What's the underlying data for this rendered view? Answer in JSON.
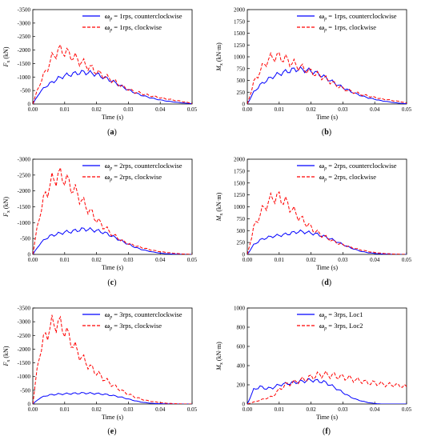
{
  "chart_data": [
    {
      "type": "line",
      "panel": "a",
      "xlabel": "Time (s)",
      "ylabel_main": "F",
      "ylabel_sub": "x",
      "ylabel_unit": "(kN)",
      "xlim": [
        0,
        0.05
      ],
      "ylim": [
        0,
        -3500
      ],
      "xticks": [
        "0.00",
        "0.01",
        "0.02",
        "0.03",
        "0.04",
        "0.05"
      ],
      "yticks": [
        "0",
        "-500",
        "-1000",
        "-1500",
        "-2000",
        "-2500",
        "-3000",
        "-3500"
      ],
      "series": [
        {
          "name_main": "ω",
          "name_sub": "p",
          "name_rest": " = 1rps, counterclockwise",
          "color": "#0000ff",
          "dash": "solid",
          "x": [
            0,
            0.002,
            0.004,
            0.006,
            0.008,
            0.01,
            0.012,
            0.014,
            0.016,
            0.018,
            0.02,
            0.022,
            0.024,
            0.026,
            0.028,
            0.03,
            0.032,
            0.034,
            0.036,
            0.038,
            0.04,
            0.042,
            0.044,
            0.046,
            0.048,
            0.05
          ],
          "y": [
            0,
            -400,
            -650,
            -800,
            -950,
            -1050,
            -1100,
            -1150,
            -1180,
            -1150,
            -1100,
            -1000,
            -900,
            -780,
            -650,
            -520,
            -420,
            -330,
            -260,
            -200,
            -150,
            -110,
            -80,
            -50,
            -30,
            -10
          ]
        },
        {
          "name_main": "ω",
          "name_sub": "p",
          "name_rest": " = 1rps, clockwise",
          "color": "#ff0000",
          "dash": "dashed",
          "x": [
            0,
            0.002,
            0.004,
            0.006,
            0.008,
            0.01,
            0.012,
            0.014,
            0.016,
            0.018,
            0.02,
            0.022,
            0.024,
            0.026,
            0.028,
            0.03,
            0.032,
            0.034,
            0.036,
            0.038,
            0.04,
            0.042,
            0.044,
            0.046,
            0.048,
            0.05
          ],
          "y": [
            0,
            -700,
            -1200,
            -1700,
            -2000,
            -1950,
            -1800,
            -1650,
            -1500,
            -1350,
            -1200,
            -1050,
            -950,
            -800,
            -650,
            -550,
            -450,
            -400,
            -330,
            -280,
            -230,
            -190,
            -150,
            -110,
            -70,
            -20
          ]
        }
      ]
    },
    {
      "type": "line",
      "panel": "b",
      "xlabel": "Time (s)",
      "ylabel_main": "M",
      "ylabel_sub": "x",
      "ylabel_unit": "(kN·m)",
      "xlim": [
        0,
        0.05
      ],
      "ylim": [
        0,
        2000
      ],
      "xticks": [
        "0.00",
        "0.01",
        "0.02",
        "0.03",
        "0.04",
        "0.05"
      ],
      "yticks": [
        "0",
        "250",
        "500",
        "750",
        "1000",
        "1250",
        "1500",
        "1750",
        "2000"
      ],
      "series": [
        {
          "name_main": "ω",
          "name_sub": "p",
          "name_rest": " = 1rps, counterclockwise",
          "color": "#0000ff",
          "dash": "solid",
          "x": [
            0,
            0.002,
            0.004,
            0.006,
            0.008,
            0.01,
            0.012,
            0.014,
            0.016,
            0.018,
            0.02,
            0.022,
            0.024,
            0.026,
            0.028,
            0.03,
            0.032,
            0.034,
            0.036,
            0.038,
            0.04,
            0.042,
            0.044,
            0.046,
            0.048,
            0.05
          ],
          "y": [
            0,
            250,
            400,
            500,
            580,
            640,
            680,
            720,
            740,
            720,
            700,
            650,
            580,
            500,
            420,
            350,
            280,
            220,
            170,
            130,
            100,
            70,
            50,
            30,
            15,
            5
          ]
        },
        {
          "name_main": "ω",
          "name_sub": "p",
          "name_rest": " = 1rps, clockwise",
          "color": "#ff0000",
          "dash": "dashed",
          "x": [
            0,
            0.002,
            0.004,
            0.006,
            0.008,
            0.01,
            0.012,
            0.014,
            0.016,
            0.018,
            0.02,
            0.022,
            0.024,
            0.026,
            0.028,
            0.03,
            0.032,
            0.034,
            0.036,
            0.038,
            0.04,
            0.042,
            0.044,
            0.046,
            0.048,
            0.05
          ],
          "y": [
            0,
            450,
            700,
            900,
            1000,
            1000,
            950,
            870,
            800,
            740,
            680,
            620,
            560,
            480,
            400,
            330,
            280,
            240,
            200,
            170,
            140,
            110,
            90,
            70,
            50,
            20
          ]
        }
      ]
    },
    {
      "type": "line",
      "panel": "c",
      "xlabel": "Time (s)",
      "ylabel_main": "F",
      "ylabel_sub": "x",
      "ylabel_unit": "(kN)",
      "xlim": [
        0,
        0.05
      ],
      "ylim": [
        0,
        -3000
      ],
      "xticks": [
        "0.00",
        "0.01",
        "0.02",
        "0.03",
        "0.04",
        "0.05"
      ],
      "yticks": [
        "0",
        "-500",
        "-1000",
        "-1500",
        "-2000",
        "-2500",
        "-3000"
      ],
      "series": [
        {
          "name_main": "ω",
          "name_sub": "p",
          "name_rest": " = 2rps, counterclockwise",
          "color": "#0000ff",
          "dash": "solid",
          "x": [
            0,
            0.002,
            0.004,
            0.006,
            0.008,
            0.01,
            0.012,
            0.014,
            0.016,
            0.018,
            0.02,
            0.022,
            0.024,
            0.026,
            0.028,
            0.03,
            0.032,
            0.034,
            0.036,
            0.038,
            0.04,
            0.042,
            0.044,
            0.046,
            0.048,
            0.05
          ],
          "y": [
            0,
            -300,
            -500,
            -600,
            -650,
            -700,
            -720,
            -760,
            -800,
            -780,
            -750,
            -700,
            -620,
            -520,
            -420,
            -320,
            -230,
            -160,
            -110,
            -70,
            -40,
            -20,
            -10,
            -5,
            0,
            0
          ]
        },
        {
          "name_main": "ω",
          "name_sub": "p",
          "name_rest": " = 2rps, clockwise",
          "color": "#ff0000",
          "dash": "dashed",
          "x": [
            0,
            0.002,
            0.004,
            0.006,
            0.008,
            0.01,
            0.012,
            0.014,
            0.016,
            0.018,
            0.02,
            0.022,
            0.024,
            0.026,
            0.028,
            0.03,
            0.032,
            0.034,
            0.036,
            0.038,
            0.04,
            0.042,
            0.044,
            0.046,
            0.048,
            0.05
          ],
          "y": [
            0,
            -1200,
            -1900,
            -2300,
            -2500,
            -2400,
            -2150,
            -1900,
            -1600,
            -1350,
            -1100,
            -900,
            -720,
            -560,
            -430,
            -340,
            -280,
            -220,
            -170,
            -120,
            -90,
            -60,
            -40,
            -20,
            -10,
            0
          ]
        }
      ]
    },
    {
      "type": "line",
      "panel": "d",
      "xlabel": "Time (s)",
      "ylabel_main": "M",
      "ylabel_sub": "x",
      "ylabel_unit": "(kN·m)",
      "xlim": [
        0,
        0.05
      ],
      "ylim": [
        0,
        2000
      ],
      "xticks": [
        "0.00",
        "0.01",
        "0.02",
        "0.03",
        "0.04",
        "0.05"
      ],
      "yticks": [
        "0",
        "250",
        "500",
        "750",
        "1000",
        "1250",
        "1500",
        "1750",
        "2000"
      ],
      "series": [
        {
          "name_main": "ω",
          "name_sub": "p",
          "name_rest": " = 2rps, counterclockwise",
          "color": "#0000ff",
          "dash": "solid",
          "x": [
            0,
            0.002,
            0.004,
            0.006,
            0.008,
            0.01,
            0.012,
            0.014,
            0.016,
            0.018,
            0.02,
            0.022,
            0.024,
            0.026,
            0.028,
            0.03,
            0.032,
            0.034,
            0.036,
            0.038,
            0.04,
            0.042,
            0.044,
            0.046,
            0.048,
            0.05
          ],
          "y": [
            0,
            200,
            300,
            350,
            380,
            400,
            420,
            450,
            480,
            470,
            450,
            420,
            380,
            330,
            270,
            210,
            150,
            100,
            60,
            35,
            20,
            10,
            5,
            0,
            0,
            0
          ]
        },
        {
          "name_main": "ω",
          "name_sub": "p",
          "name_rest": " = 2rps, clockwise",
          "color": "#ff0000",
          "dash": "dashed",
          "x": [
            0,
            0.002,
            0.004,
            0.006,
            0.008,
            0.01,
            0.012,
            0.014,
            0.016,
            0.018,
            0.02,
            0.022,
            0.024,
            0.026,
            0.028,
            0.03,
            0.032,
            0.034,
            0.036,
            0.038,
            0.04,
            0.042,
            0.044,
            0.046,
            0.048,
            0.05
          ],
          "y": [
            0,
            550,
            850,
            1050,
            1200,
            1200,
            1100,
            950,
            800,
            680,
            560,
            460,
            380,
            310,
            250,
            200,
            160,
            120,
            90,
            60,
            40,
            25,
            15,
            8,
            4,
            0
          ]
        }
      ]
    },
    {
      "type": "line",
      "panel": "e",
      "xlabel": "Time (s)",
      "ylabel_main": "F",
      "ylabel_sub": "x",
      "ylabel_unit": "(kN)",
      "xlim": [
        0,
        0.05
      ],
      "ylim": [
        0,
        -3500
      ],
      "xticks": [
        "0.00",
        "0.01",
        "0.02",
        "0.03",
        "0.04",
        "0.05"
      ],
      "yticks": [
        "0",
        "-500",
        "-1000",
        "-1500",
        "-2000",
        "-2500",
        "-3000",
        "-3500"
      ],
      "series": [
        {
          "name_main": "ω",
          "name_sub": "p",
          "name_rest": " = 3rps, counterclockwise",
          "color": "#0000ff",
          "dash": "solid",
          "x": [
            0,
            0.002,
            0.004,
            0.006,
            0.008,
            0.01,
            0.012,
            0.014,
            0.016,
            0.018,
            0.02,
            0.022,
            0.024,
            0.026,
            0.028,
            0.03,
            0.032,
            0.034,
            0.036,
            0.038,
            0.04,
            0.042,
            0.044,
            0.046,
            0.048,
            0.05
          ],
          "y": [
            0,
            -200,
            -300,
            -340,
            -360,
            -370,
            -380,
            -390,
            -400,
            -390,
            -380,
            -360,
            -330,
            -290,
            -240,
            -180,
            -120,
            -70,
            -40,
            -20,
            -10,
            -5,
            0,
            0,
            0,
            0
          ]
        },
        {
          "name_main": "ω",
          "name_sub": "p",
          "name_rest": " = 3rps, clockwise",
          "color": "#ff0000",
          "dash": "dashed",
          "x": [
            0,
            0.002,
            0.004,
            0.006,
            0.008,
            0.01,
            0.012,
            0.014,
            0.016,
            0.018,
            0.02,
            0.022,
            0.024,
            0.026,
            0.028,
            0.03,
            0.032,
            0.034,
            0.036,
            0.038,
            0.04,
            0.042,
            0.044,
            0.046,
            0.048,
            0.05
          ],
          "y": [
            0,
            -1800,
            -2500,
            -2900,
            -2950,
            -2700,
            -2300,
            -1900,
            -1600,
            -1350,
            -1150,
            -950,
            -780,
            -620,
            -480,
            -360,
            -260,
            -180,
            -120,
            -80,
            -50,
            -30,
            -15,
            -5,
            0,
            0
          ]
        }
      ]
    },
    {
      "type": "line",
      "panel": "f",
      "xlabel": "Time (s)",
      "ylabel_main": "M",
      "ylabel_sub": "x",
      "ylabel_unit": "(kN·m)",
      "xlim": [
        0,
        0.05
      ],
      "ylim": [
        0,
        1000
      ],
      "xticks": [
        "0.00",
        "0.01",
        "0.02",
        "0.03",
        "0.04",
        "0.05"
      ],
      "yticks": [
        "0",
        "200",
        "400",
        "600",
        "800",
        "1000"
      ],
      "series": [
        {
          "name_main": "ω",
          "name_sub": "p",
          "name_rest": " = 3rps, Loc1",
          "color": "#0000ff",
          "dash": "solid",
          "x": [
            0,
            0.002,
            0.004,
            0.006,
            0.008,
            0.01,
            0.012,
            0.014,
            0.016,
            0.018,
            0.02,
            0.022,
            0.024,
            0.026,
            0.028,
            0.03,
            0.032,
            0.034,
            0.036,
            0.038,
            0.04,
            0.042,
            0.044,
            0.046,
            0.048,
            0.05
          ],
          "y": [
            0,
            150,
            180,
            160,
            170,
            200,
            210,
            220,
            230,
            240,
            250,
            240,
            230,
            200,
            160,
            120,
            80,
            50,
            30,
            15,
            5,
            0,
            0,
            0,
            0,
            0
          ]
        },
        {
          "name_main": "ω",
          "name_sub": "p",
          "name_rest": " = 3rps, Loc2",
          "color": "#ff0000",
          "dash": "dashed",
          "x": [
            0,
            0.002,
            0.004,
            0.006,
            0.008,
            0.01,
            0.012,
            0.014,
            0.016,
            0.018,
            0.02,
            0.022,
            0.024,
            0.026,
            0.028,
            0.03,
            0.032,
            0.034,
            0.036,
            0.038,
            0.04,
            0.042,
            0.044,
            0.046,
            0.048,
            0.05
          ],
          "y": [
            0,
            20,
            40,
            60,
            80,
            150,
            200,
            220,
            240,
            260,
            280,
            300,
            310,
            300,
            290,
            280,
            270,
            250,
            240,
            220,
            220,
            210,
            200,
            200,
            190,
            180
          ]
        }
      ]
    }
  ]
}
